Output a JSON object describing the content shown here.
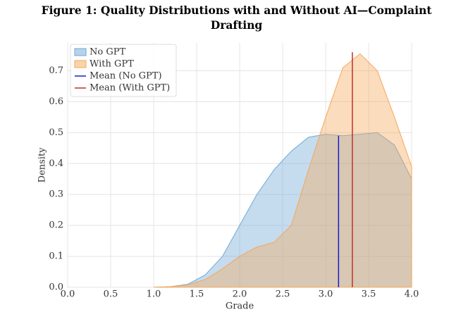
{
  "chart_data": {
    "type": "area",
    "title": "Figure 1: Quality Distributions with and Without AI—Complaint Drafting",
    "x_label": "Grade",
    "y_label": "Density",
    "x": [
      1.0,
      1.2,
      1.4,
      1.6,
      1.8,
      2.0,
      2.2,
      2.4,
      2.6,
      2.8,
      3.0,
      3.2,
      3.4,
      3.6,
      3.8,
      4.0
    ],
    "series": [
      {
        "name": "No GPT",
        "color": "#6fa8d6",
        "values": [
          0,
          0.002,
          0.01,
          0.04,
          0.1,
          0.2,
          0.3,
          0.38,
          0.44,
          0.485,
          0.495,
          0.49,
          0.495,
          0.5,
          0.46,
          0.35
        ]
      },
      {
        "name": "With GPT",
        "color": "#f5a75a",
        "values": [
          0,
          0.002,
          0.008,
          0.025,
          0.06,
          0.1,
          0.13,
          0.145,
          0.2,
          0.38,
          0.55,
          0.71,
          0.755,
          0.7,
          0.55,
          0.39
        ]
      }
    ],
    "mean_lines": [
      {
        "name": "Mean (No GPT)",
        "color": "#1a1acc",
        "x": 3.15,
        "y": 0.49
      },
      {
        "name": "Mean (With GPT)",
        "color": "#c0302a",
        "x": 3.31,
        "y": 0.76
      }
    ],
    "xlim": [
      0,
      4
    ],
    "ylim": [
      0,
      0.79
    ],
    "xticks": [
      {
        "value": 0,
        "label": "0.0"
      },
      {
        "value": 0.5,
        "label": "0.5"
      },
      {
        "value": 1,
        "label": "1.0"
      },
      {
        "value": 1.5,
        "label": "1.5"
      },
      {
        "value": 2,
        "label": "2.0"
      },
      {
        "value": 2.5,
        "label": "2.5"
      },
      {
        "value": 3,
        "label": "3.0"
      },
      {
        "value": 3.5,
        "label": "3.5"
      },
      {
        "value": 4,
        "label": "4.0"
      }
    ],
    "yticks": [
      {
        "value": 0,
        "label": "0.0"
      },
      0.1,
      0.2,
      0.3,
      0.4,
      0.5,
      0.6,
      0.7
    ],
    "grid": true,
    "legend": "upper-left"
  }
}
